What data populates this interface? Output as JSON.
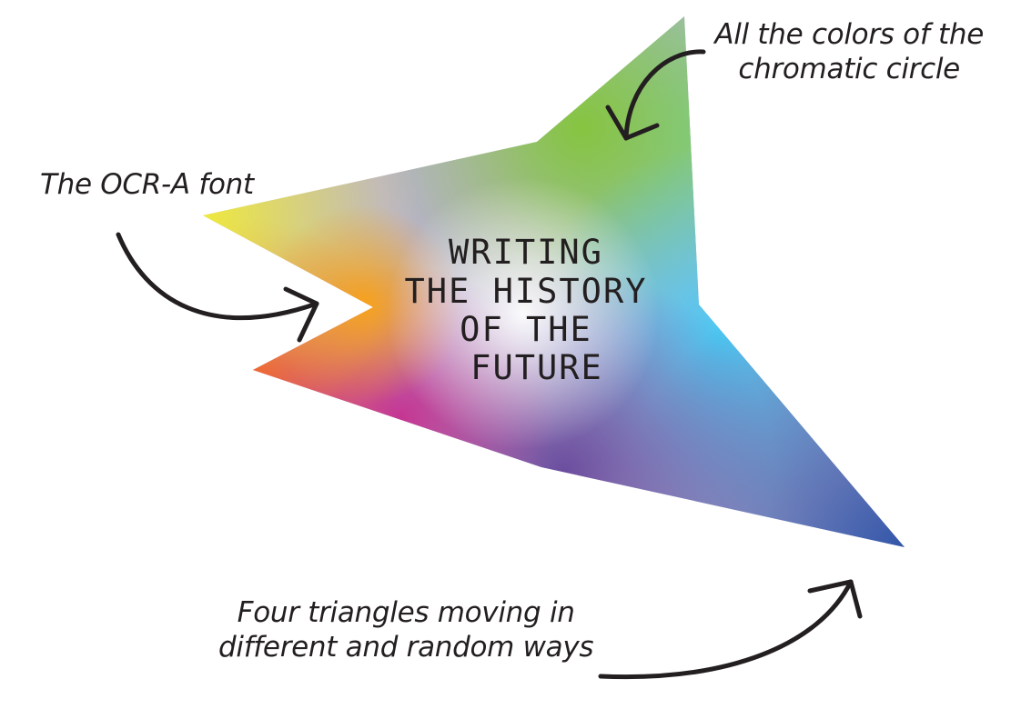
{
  "logo": {
    "lines": [
      "WRITING",
      "THE HISTORY",
      "OF THE",
      "FUTURE"
    ]
  },
  "annotations": {
    "font": "The OCR-A font",
    "colors": [
      "All the colors of the",
      "chromatic circle"
    ],
    "triangles": [
      "Four triangles moving in",
      "different and random ways"
    ]
  },
  "colors": {
    "text": "#231f20",
    "yellow": "#f2ec2e",
    "green": "#8cc63f",
    "mint": "#7fcfb0",
    "cyan": "#4fc8ef",
    "blue": "#3653a5",
    "red": "#ed2d2d",
    "magenta": "#c5318f",
    "purple": "#7b4fa0",
    "orange": "#f7a21b"
  }
}
